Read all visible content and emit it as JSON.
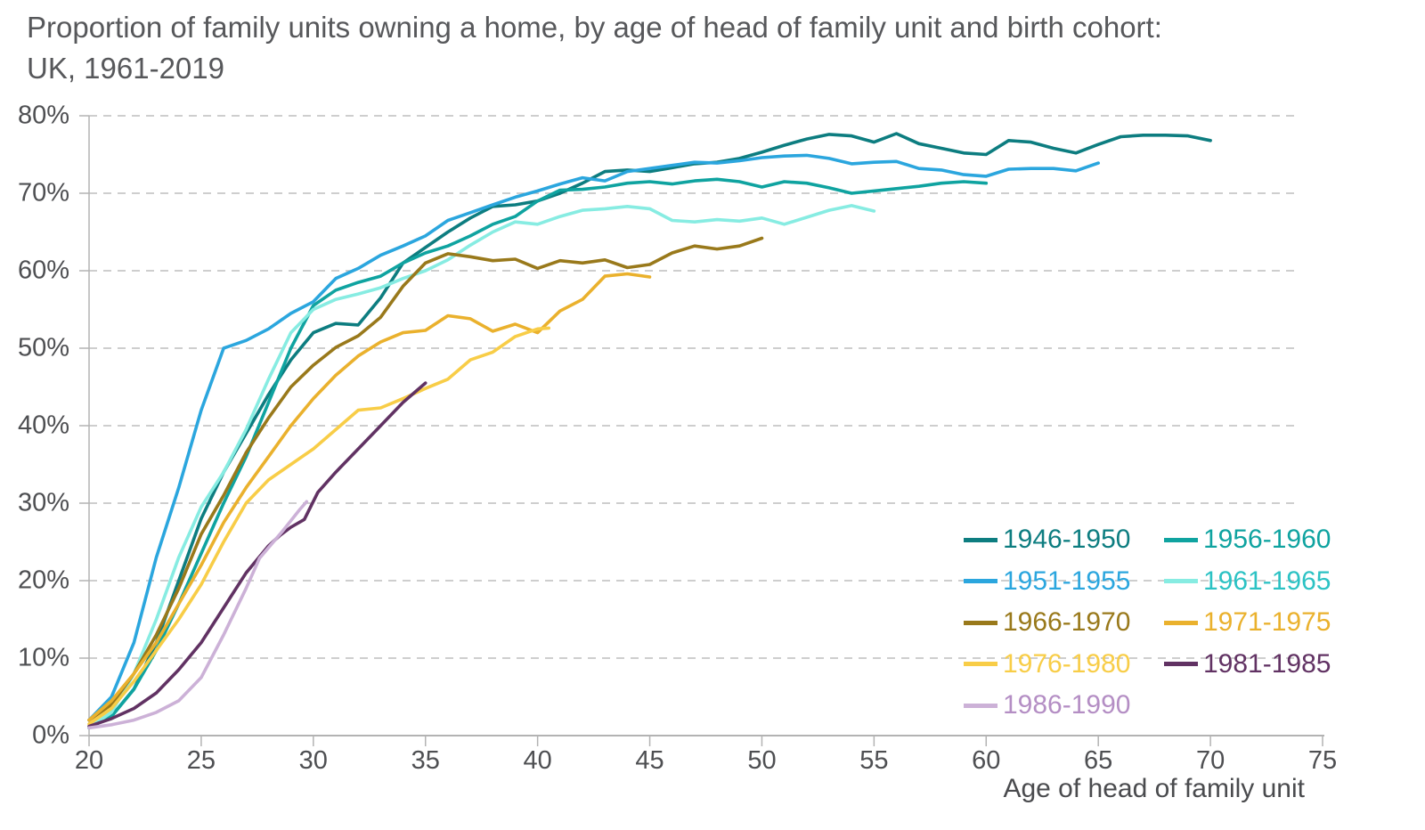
{
  "title": {
    "line1": "Proportion of family units owning a home, by age of head of family unit and birth cohort:",
    "line2": "UK, 1961-2019"
  },
  "chart_data": {
    "type": "line",
    "title": "Proportion of family units owning a home, by age of head of family unit and birth cohort: UK, 1961-2019",
    "xlabel": "Age of head of family unit",
    "ylabel": "",
    "xlim": [
      20,
      75
    ],
    "ylim": [
      0,
      80
    ],
    "x_ticks": [
      20,
      25,
      30,
      35,
      40,
      45,
      50,
      55,
      60,
      65,
      70,
      75
    ],
    "y_tick_labels": [
      "0%",
      "10%",
      "20%",
      "30%",
      "40%",
      "50%",
      "60%",
      "70%",
      "80%"
    ],
    "grid": "horizontal-dashed",
    "legend_position": "inside-bottom-right",
    "legend_columns": 2,
    "legend_order": [
      0,
      2,
      1,
      3,
      4,
      5,
      6,
      7,
      8
    ],
    "series": [
      {
        "name": "1946-1950",
        "color": "#0d7d80",
        "label_color": "#0d7d80",
        "points": [
          [
            20,
            1
          ],
          [
            21,
            2.5
          ],
          [
            22,
            6
          ],
          [
            23,
            12
          ],
          [
            24,
            20
          ],
          [
            25,
            28
          ],
          [
            26,
            34
          ],
          [
            27,
            39
          ],
          [
            28,
            44
          ],
          [
            29,
            48.5
          ],
          [
            30,
            52
          ],
          [
            31,
            53.2
          ],
          [
            32,
            53
          ],
          [
            33,
            56.5
          ],
          [
            34,
            61
          ],
          [
            35,
            63
          ],
          [
            36,
            65
          ],
          [
            37,
            66.8
          ],
          [
            38,
            68.3
          ],
          [
            39,
            68.5
          ],
          [
            40,
            69
          ],
          [
            41,
            70
          ],
          [
            42,
            71.3
          ],
          [
            43,
            72.8
          ],
          [
            44,
            73
          ],
          [
            45,
            72.8
          ],
          [
            46,
            73.3
          ],
          [
            47,
            73.8
          ],
          [
            48,
            74
          ],
          [
            49,
            74.5
          ],
          [
            50,
            75.3
          ],
          [
            51,
            76.2
          ],
          [
            52,
            77
          ],
          [
            53,
            77.6
          ],
          [
            54,
            77.4
          ],
          [
            55,
            76.6
          ],
          [
            56,
            77.7
          ],
          [
            57,
            76.4
          ],
          [
            58,
            75.8
          ],
          [
            59,
            75.2
          ],
          [
            60,
            75
          ],
          [
            61,
            76.8
          ],
          [
            62,
            76.6
          ],
          [
            63,
            75.8
          ],
          [
            64,
            75.2
          ],
          [
            65,
            76.3
          ],
          [
            66,
            77.3
          ],
          [
            67,
            77.5
          ],
          [
            68,
            77.5
          ],
          [
            69,
            77.4
          ],
          [
            70,
            76.8
          ]
        ]
      },
      {
        "name": "1951-1955",
        "color": "#2ba6de",
        "label_color": "#2ba6de",
        "points": [
          [
            20,
            2
          ],
          [
            21,
            5
          ],
          [
            22,
            12
          ],
          [
            23,
            23
          ],
          [
            24,
            32
          ],
          [
            25,
            42
          ],
          [
            26,
            50
          ],
          [
            27,
            51
          ],
          [
            28,
            52.5
          ],
          [
            29,
            54.5
          ],
          [
            30,
            56
          ],
          [
            31,
            59
          ],
          [
            32,
            60.3
          ],
          [
            33,
            62
          ],
          [
            34,
            63.2
          ],
          [
            35,
            64.5
          ],
          [
            36,
            66.5
          ],
          [
            37,
            67.5
          ],
          [
            38,
            68.5
          ],
          [
            39,
            69.5
          ],
          [
            40,
            70.3
          ],
          [
            41,
            71.2
          ],
          [
            42,
            72
          ],
          [
            43,
            71.6
          ],
          [
            44,
            72.8
          ],
          [
            45,
            73.2
          ],
          [
            46,
            73.6
          ],
          [
            47,
            74
          ],
          [
            48,
            73.9
          ],
          [
            49,
            74.2
          ],
          [
            50,
            74.6
          ],
          [
            51,
            74.8
          ],
          [
            52,
            74.9
          ],
          [
            53,
            74.5
          ],
          [
            54,
            73.8
          ],
          [
            55,
            74
          ],
          [
            56,
            74.1
          ],
          [
            57,
            73.2
          ],
          [
            58,
            73
          ],
          [
            59,
            72.4
          ],
          [
            60,
            72.2
          ],
          [
            61,
            73.1
          ],
          [
            62,
            73.2
          ],
          [
            63,
            73.2
          ],
          [
            64,
            72.9
          ],
          [
            65,
            73.9
          ]
        ]
      },
      {
        "name": "1956-1960",
        "color": "#0fa3a0",
        "label_color": "#0fa3a0",
        "points": [
          [
            20,
            1
          ],
          [
            21,
            2.5
          ],
          [
            22,
            6
          ],
          [
            23,
            11
          ],
          [
            24,
            17
          ],
          [
            25,
            23.5
          ],
          [
            26,
            30
          ],
          [
            27,
            36
          ],
          [
            28,
            43
          ],
          [
            29,
            50
          ],
          [
            30,
            55.5
          ],
          [
            31,
            57.5
          ],
          [
            32,
            58.5
          ],
          [
            33,
            59.3
          ],
          [
            34,
            61
          ],
          [
            35,
            62.3
          ],
          [
            36,
            63.2
          ],
          [
            37,
            64.5
          ],
          [
            38,
            66
          ],
          [
            39,
            67
          ],
          [
            40,
            69
          ],
          [
            41,
            70.4
          ],
          [
            42,
            70.5
          ],
          [
            43,
            70.8
          ],
          [
            44,
            71.3
          ],
          [
            45,
            71.5
          ],
          [
            46,
            71.2
          ],
          [
            47,
            71.6
          ],
          [
            48,
            71.8
          ],
          [
            49,
            71.5
          ],
          [
            50,
            70.8
          ],
          [
            51,
            71.5
          ],
          [
            52,
            71.3
          ],
          [
            53,
            70.7
          ],
          [
            54,
            70
          ],
          [
            55,
            70.3
          ],
          [
            56,
            70.6
          ],
          [
            57,
            70.9
          ],
          [
            58,
            71.3
          ],
          [
            59,
            71.5
          ],
          [
            60,
            71.3
          ]
        ]
      },
      {
        "name": "1961-1965",
        "color": "#87ece2",
        "label_color": "#2cc2c4",
        "points": [
          [
            20,
            1
          ],
          [
            21,
            3
          ],
          [
            22,
            8
          ],
          [
            23,
            15
          ],
          [
            24,
            23
          ],
          [
            25,
            29.5
          ],
          [
            26,
            34
          ],
          [
            27,
            39.5
          ],
          [
            28,
            46
          ],
          [
            29,
            52
          ],
          [
            30,
            55
          ],
          [
            31,
            56.3
          ],
          [
            32,
            57
          ],
          [
            33,
            57.8
          ],
          [
            34,
            59
          ],
          [
            35,
            60
          ],
          [
            36,
            61.4
          ],
          [
            37,
            63.3
          ],
          [
            38,
            65
          ],
          [
            39,
            66.3
          ],
          [
            40,
            66
          ],
          [
            41,
            67
          ],
          [
            42,
            67.8
          ],
          [
            43,
            68
          ],
          [
            44,
            68.3
          ],
          [
            45,
            68
          ],
          [
            46,
            66.5
          ],
          [
            47,
            66.3
          ],
          [
            48,
            66.6
          ],
          [
            49,
            66.4
          ],
          [
            50,
            66.8
          ],
          [
            51,
            66
          ],
          [
            52,
            66.9
          ],
          [
            53,
            67.8
          ],
          [
            54,
            68.4
          ],
          [
            55,
            67.7
          ]
        ]
      },
      {
        "name": "1966-1970",
        "color": "#99791b",
        "label_color": "#99791b",
        "points": [
          [
            20,
            2
          ],
          [
            21,
            4
          ],
          [
            22,
            8
          ],
          [
            23,
            13
          ],
          [
            24,
            19
          ],
          [
            25,
            26
          ],
          [
            26,
            31
          ],
          [
            27,
            36.5
          ],
          [
            28,
            41
          ],
          [
            29,
            45
          ],
          [
            30,
            47.8
          ],
          [
            31,
            50.1
          ],
          [
            32,
            51.6
          ],
          [
            33,
            54
          ],
          [
            34,
            58
          ],
          [
            35,
            61
          ],
          [
            36,
            62.2
          ],
          [
            37,
            61.8
          ],
          [
            38,
            61.3
          ],
          [
            39,
            61.5
          ],
          [
            40,
            60.3
          ],
          [
            41,
            61.3
          ],
          [
            42,
            61
          ],
          [
            43,
            61.4
          ],
          [
            44,
            60.4
          ],
          [
            45,
            60.8
          ],
          [
            46,
            62.3
          ],
          [
            47,
            63.2
          ],
          [
            48,
            62.8
          ],
          [
            49,
            63.2
          ],
          [
            50,
            64.2
          ]
        ]
      },
      {
        "name": "1971-1975",
        "color": "#eab12d",
        "label_color": "#eab12d",
        "points": [
          [
            20,
            2
          ],
          [
            21,
            4.5
          ],
          [
            22,
            8
          ],
          [
            23,
            12
          ],
          [
            24,
            17
          ],
          [
            25,
            22
          ],
          [
            26,
            27.5
          ],
          [
            27,
            32
          ],
          [
            28,
            36
          ],
          [
            29,
            40
          ],
          [
            30,
            43.5
          ],
          [
            31,
            46.5
          ],
          [
            32,
            49
          ],
          [
            33,
            50.8
          ],
          [
            34,
            52
          ],
          [
            35,
            52.3
          ],
          [
            36,
            54.2
          ],
          [
            37,
            53.8
          ],
          [
            38,
            52.2
          ],
          [
            39,
            53.1
          ],
          [
            40,
            52
          ],
          [
            41,
            54.8
          ],
          [
            42,
            56.3
          ],
          [
            43,
            59.3
          ],
          [
            44,
            59.6
          ],
          [
            45,
            59.2
          ]
        ]
      },
      {
        "name": "1976-1980",
        "color": "#f8cd47",
        "label_color": "#f8cd47",
        "points": [
          [
            20,
            1.5
          ],
          [
            21,
            3.5
          ],
          [
            22,
            7
          ],
          [
            23,
            11
          ],
          [
            24,
            15
          ],
          [
            25,
            19.5
          ],
          [
            26,
            25
          ],
          [
            27,
            30
          ],
          [
            28,
            33
          ],
          [
            29,
            35
          ],
          [
            30,
            37
          ],
          [
            31,
            39.5
          ],
          [
            32,
            42
          ],
          [
            33,
            42.3
          ],
          [
            34,
            43.5
          ],
          [
            35,
            44.8
          ],
          [
            36,
            46
          ],
          [
            37,
            48.5
          ],
          [
            38,
            49.5
          ],
          [
            39,
            51.5
          ],
          [
            40,
            52.5
          ],
          [
            40.5,
            52.6
          ]
        ]
      },
      {
        "name": "1981-1985",
        "color": "#613263",
        "label_color": "#613263",
        "points": [
          [
            20,
            1.2
          ],
          [
            21,
            2.2
          ],
          [
            22,
            3.5
          ],
          [
            23,
            5.5
          ],
          [
            24,
            8.5
          ],
          [
            25,
            12
          ],
          [
            26,
            16.5
          ],
          [
            27,
            21
          ],
          [
            28,
            24.5
          ],
          [
            28.5,
            25.8
          ],
          [
            29,
            26.9
          ],
          [
            29.6,
            27.9
          ],
          [
            30.2,
            31.4
          ],
          [
            31,
            34
          ],
          [
            32,
            37
          ],
          [
            33,
            40
          ],
          [
            34,
            43
          ],
          [
            35,
            45.5
          ]
        ]
      },
      {
        "name": "1986-1990",
        "color": "#ccb1d7",
        "label_color": "#b48ec4",
        "points": [
          [
            20,
            1
          ],
          [
            21,
            1.4
          ],
          [
            22,
            2
          ],
          [
            23,
            3
          ],
          [
            24,
            4.5
          ],
          [
            25,
            7.5
          ],
          [
            26,
            13
          ],
          [
            27,
            19
          ],
          [
            27.6,
            22.9
          ],
          [
            28.6,
            26.3
          ],
          [
            29.4,
            29.2
          ],
          [
            29.7,
            30.2
          ]
        ]
      }
    ]
  },
  "style_colors": {
    "grid": "#bdbdbd",
    "axis": "#b3b3b3",
    "tick_text": "#4e4f52",
    "title_text": "#57585b"
  }
}
